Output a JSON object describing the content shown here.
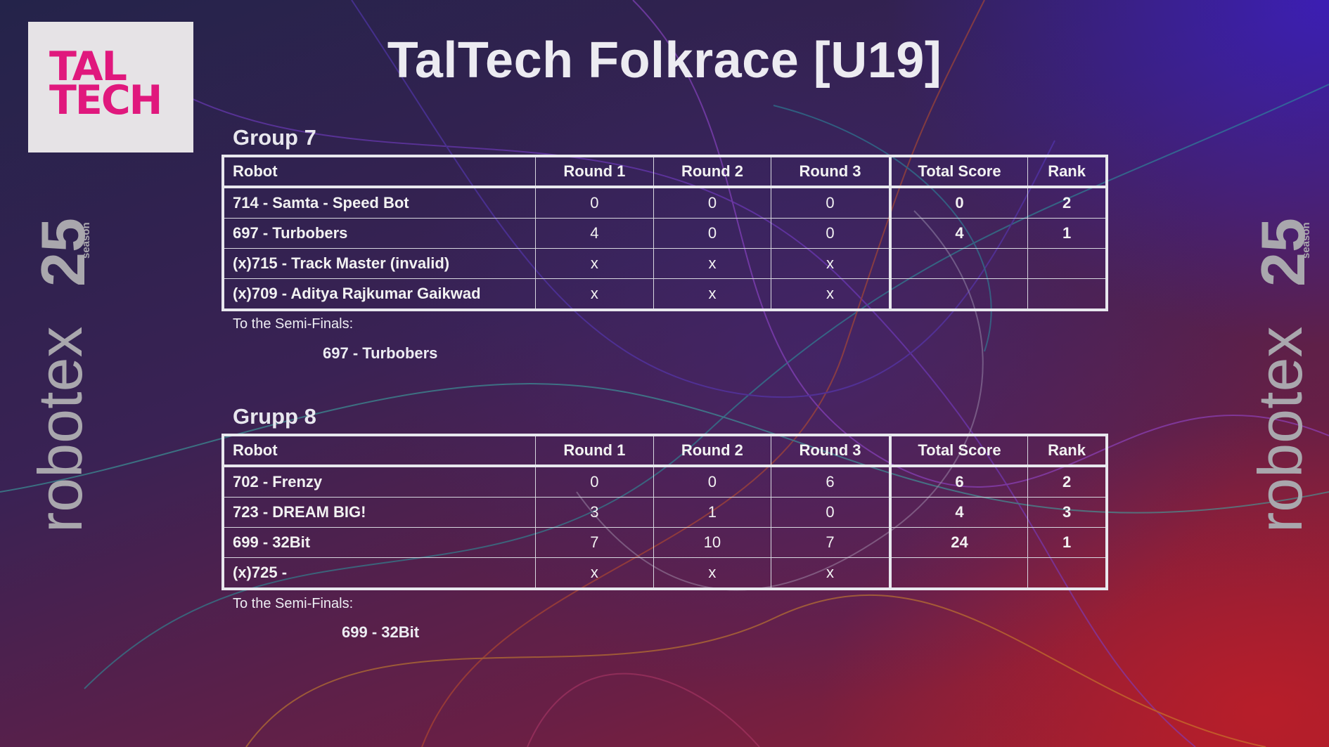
{
  "title": "TalTech Folkrace [U19]",
  "logo": {
    "line1": "TAL",
    "line2": "TECH",
    "color": "#e0187d"
  },
  "side_brand": {
    "word": "robotex",
    "number": "25",
    "tag": "season"
  },
  "columns": [
    "Robot",
    "Round 1",
    "Round 2",
    "Round 3",
    "Total Score",
    "Rank"
  ],
  "groups": [
    {
      "title": "Group 7",
      "rows": [
        {
          "robot": "714 - Samta - Speed Bot",
          "r1": "0",
          "r2": "0",
          "r3": "0",
          "total": "0",
          "rank": "2"
        },
        {
          "robot": "697 - Turbobers",
          "r1": "4",
          "r2": "0",
          "r3": "0",
          "total": "4",
          "rank": "1"
        },
        {
          "robot": "(x)715 - Track Master (invalid)",
          "r1": "x",
          "r2": "x",
          "r3": "x",
          "total": "",
          "rank": ""
        },
        {
          "robot": "(x)709 - Aditya Rajkumar Gaikwad",
          "r1": "x",
          "r2": "x",
          "r3": "x",
          "total": "",
          "rank": ""
        }
      ],
      "semi_label": "To the Semi-Finals:",
      "semi_team": "697 - Turbobers"
    },
    {
      "title": "Grupp 8",
      "rows": [
        {
          "robot": "702 - Frenzy",
          "r1": "0",
          "r2": "0",
          "r3": "6",
          "total": "6",
          "rank": "2"
        },
        {
          "robot": "723 - DREAM BIG!",
          "r1": "3",
          "r2": "1",
          "r3": "0",
          "total": "4",
          "rank": "3"
        },
        {
          "robot": "699 - 32Bit",
          "r1": "7",
          "r2": "10",
          "r3": "7",
          "total": "24",
          "rank": "1"
        },
        {
          "robot": "(x)725 -",
          "r1": "x",
          "r2": "x",
          "r3": "x",
          "total": "",
          "rank": ""
        }
      ],
      "semi_label": "To the Semi-Finals:",
      "semi_team": "699 - 32Bit"
    }
  ]
}
